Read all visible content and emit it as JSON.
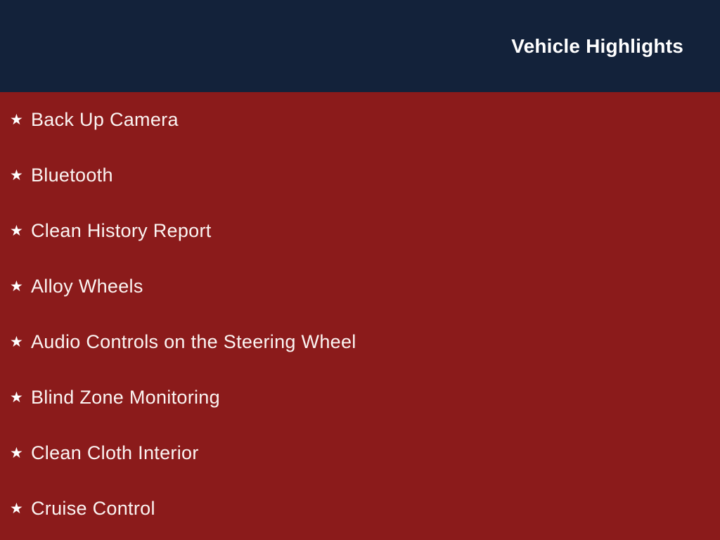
{
  "header": {
    "title": "Vehicle Highlights",
    "background_color": "#13223a",
    "title_color": "#ffffff"
  },
  "body": {
    "background_color": "#8b1b1b",
    "text_color": "#fbf4f2"
  },
  "list": {
    "bullet": "★",
    "bullet_icon": "star-icon",
    "items": [
      "Back Up Camera",
      "Bluetooth",
      "Clean History Report",
      "Alloy Wheels",
      "Audio Controls on the Steering Wheel",
      "Blind Zone Monitoring",
      "Clean Cloth Interior",
      "Cruise Control"
    ]
  }
}
